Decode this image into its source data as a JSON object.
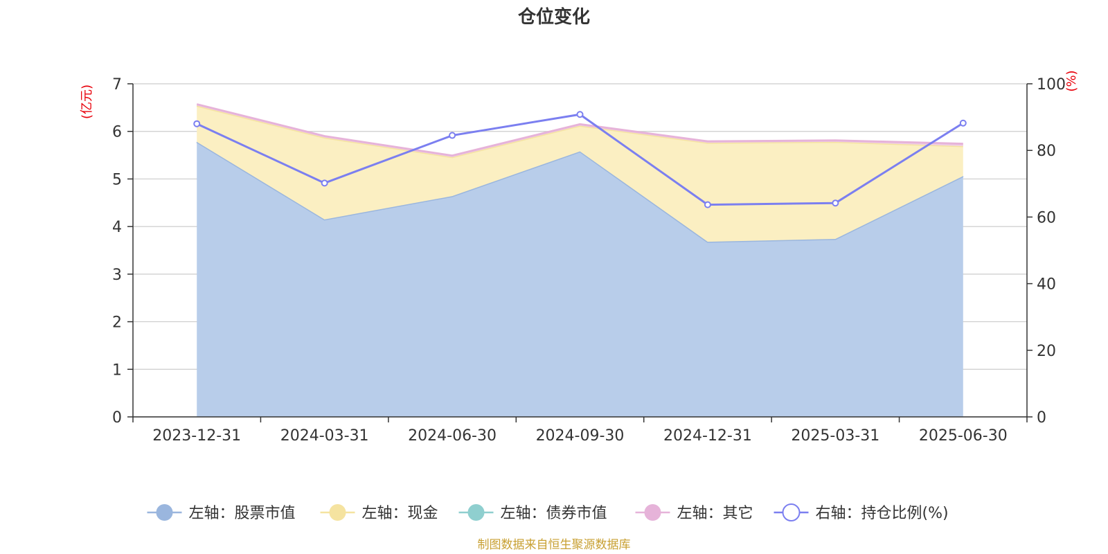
{
  "chart_data": {
    "type": "area",
    "title": "仓位变化",
    "categories": [
      "2023-12-31",
      "2024-03-31",
      "2024-06-30",
      "2024-09-30",
      "2024-12-31",
      "2025-03-31",
      "2025-06-30"
    ],
    "left_axis": {
      "unit": "(亿元)",
      "ylim": [
        0,
        7
      ],
      "ticks": [
        0,
        1,
        2,
        3,
        4,
        5,
        6,
        7
      ]
    },
    "right_axis": {
      "unit": "(%)",
      "ylim": [
        0,
        100
      ],
      "ticks": [
        0,
        20,
        40,
        60,
        80,
        100
      ]
    },
    "grid": true,
    "legend_position": "bottom",
    "series": [
      {
        "name": "左轴：股票市值",
        "axis": "left",
        "type": "area",
        "stack": true,
        "color": "#9ab6de",
        "fill": "#b8cdea",
        "values": [
          5.78,
          4.15,
          4.64,
          5.58,
          3.68,
          3.74,
          5.06
        ]
      },
      {
        "name": "左轴：现金",
        "axis": "left",
        "type": "area",
        "stack": true,
        "color": "#f5e3a0",
        "fill": "#fbefc2",
        "values": [
          0.76,
          1.72,
          0.82,
          0.54,
          2.08,
          2.04,
          0.63
        ]
      },
      {
        "name": "左轴：债券市值",
        "axis": "left",
        "type": "area",
        "stack": true,
        "color": "#8fcfcf",
        "fill": "#bfe3e3",
        "values": [
          0,
          0,
          0,
          0,
          0,
          0,
          0
        ]
      },
      {
        "name": "左轴：其它",
        "axis": "left",
        "type": "area",
        "stack": true,
        "color": "#e6b3d9",
        "fill": "#f0cfe6",
        "values": [
          0.03,
          0.03,
          0.03,
          0.03,
          0.03,
          0.03,
          0.05
        ]
      },
      {
        "name": "右轴：持仓比例(%)",
        "axis": "right",
        "type": "line",
        "color": "#7b7ff0",
        "values": [
          88.0,
          70.2,
          84.5,
          90.8,
          63.7,
          64.2,
          88.2
        ]
      }
    ],
    "source": "制图数据来自恒生聚源数据库"
  }
}
